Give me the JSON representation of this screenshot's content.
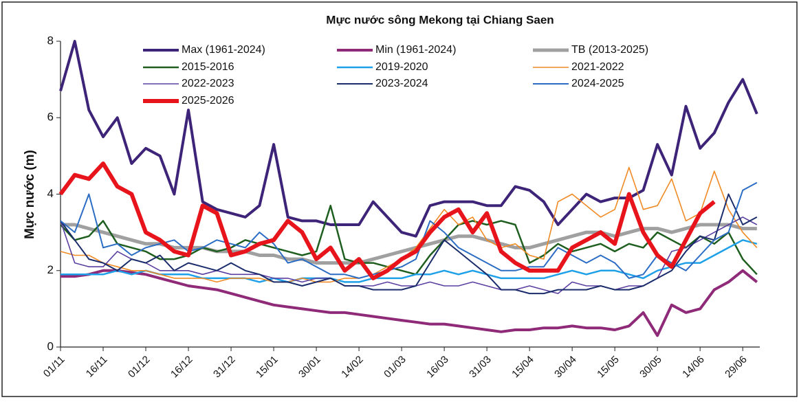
{
  "chart_data": {
    "type": "line",
    "title": "Mực nước sông Mekong tại Chiang Saen",
    "y_label": "Mực nước (m)",
    "categories": [
      "01/11",
      null,
      null,
      "16/11",
      null,
      null,
      "01/12",
      null,
      null,
      "16/12",
      null,
      null,
      "31/12",
      null,
      null,
      "15/01",
      null,
      null,
      "30/01",
      null,
      null,
      "14/02",
      null,
      null,
      "01/03",
      null,
      null,
      "16/03",
      null,
      null,
      "31/03",
      null,
      null,
      "15/04",
      null,
      null,
      "30/04",
      null,
      null,
      "15/05",
      null,
      null,
      "30/05",
      null,
      null,
      "14/06",
      null,
      null,
      "29/06",
      null
    ],
    "ylim": [
      0,
      8
    ],
    "yticks": [
      0,
      2,
      4,
      6,
      8
    ],
    "grid": false,
    "series": [
      {
        "name": "Max (1961-2024)",
        "color": "#3d2478",
        "values": [
          6.7,
          8.0,
          6.2,
          5.5,
          6.0,
          4.8,
          5.2,
          5.0,
          4.0,
          6.2,
          3.8,
          3.6,
          3.5,
          3.4,
          3.7,
          5.3,
          3.4,
          3.3,
          3.3,
          3.2,
          3.2,
          3.2,
          3.8,
          3.4,
          3.0,
          2.9,
          3.7,
          3.8,
          3.8,
          3.8,
          3.7,
          3.7,
          4.2,
          4.1,
          3.8,
          3.2,
          3.6,
          4.0,
          3.8,
          3.9,
          3.9,
          4.1,
          5.3,
          4.5,
          6.3,
          5.2,
          5.6,
          6.4,
          7.0,
          6.1
        ]
      },
      {
        "name": "Min (1961-2024)",
        "color": "#8e2a78",
        "values": [
          1.85,
          1.85,
          1.9,
          2.0,
          2.0,
          1.95,
          1.9,
          1.8,
          1.7,
          1.6,
          1.55,
          1.5,
          1.4,
          1.3,
          1.2,
          1.1,
          1.05,
          1.0,
          0.95,
          0.9,
          0.9,
          0.85,
          0.8,
          0.75,
          0.7,
          0.65,
          0.6,
          0.6,
          0.55,
          0.5,
          0.45,
          0.4,
          0.45,
          0.45,
          0.5,
          0.5,
          0.55,
          0.5,
          0.5,
          0.45,
          0.55,
          0.9,
          0.3,
          1.1,
          0.9,
          1.0,
          1.5,
          1.7,
          2.0,
          1.7
        ]
      },
      {
        "name": "TB (2013-2025)",
        "color": "#a0a0a0",
        "values": [
          3.2,
          3.2,
          3.1,
          3.0,
          2.9,
          2.8,
          2.7,
          2.7,
          2.6,
          2.6,
          2.6,
          2.5,
          2.5,
          2.5,
          2.4,
          2.4,
          2.3,
          2.3,
          2.2,
          2.2,
          2.2,
          2.2,
          2.3,
          2.4,
          2.5,
          2.6,
          2.7,
          2.8,
          2.9,
          2.9,
          2.8,
          2.7,
          2.6,
          2.6,
          2.7,
          2.8,
          2.9,
          3.0,
          3.0,
          2.9,
          3.0,
          3.1,
          3.1,
          3.0,
          3.1,
          3.2,
          3.2,
          3.2,
          3.1,
          3.1
        ]
      },
      {
        "name": "2015-2016",
        "color": "#1e5e1e",
        "values": [
          3.2,
          2.8,
          2.9,
          3.3,
          2.7,
          2.6,
          2.5,
          2.3,
          2.3,
          2.4,
          2.6,
          2.5,
          2.6,
          2.8,
          2.7,
          2.6,
          2.5,
          2.4,
          2.5,
          3.7,
          2.3,
          2.2,
          2.2,
          2.1,
          2.0,
          1.9,
          2.4,
          2.8,
          3.2,
          3.3,
          3.2,
          3.3,
          3.2,
          2.2,
          2.4,
          2.7,
          2.5,
          2.6,
          2.7,
          2.5,
          2.7,
          2.6,
          3.0,
          2.8,
          2.6,
          2.9,
          2.7,
          3.0,
          2.3,
          1.9
        ]
      },
      {
        "name": "2019-2020",
        "color": "#1ea0e8",
        "values": [
          1.9,
          1.9,
          1.9,
          1.9,
          2.0,
          1.9,
          2.0,
          1.9,
          1.9,
          1.9,
          1.8,
          1.8,
          1.8,
          1.8,
          1.7,
          1.8,
          1.7,
          1.8,
          1.8,
          1.8,
          1.7,
          1.7,
          1.8,
          1.8,
          1.8,
          1.9,
          1.9,
          2.0,
          1.9,
          2.0,
          1.9,
          1.8,
          1.8,
          1.8,
          1.8,
          1.9,
          2.0,
          1.9,
          2.0,
          2.0,
          1.9,
          1.8,
          2.0,
          2.1,
          2.2,
          2.2,
          2.4,
          2.6,
          2.8,
          2.7
        ]
      },
      {
        "name": "2021-2022",
        "color": "#f08a24",
        "values": [
          2.5,
          2.4,
          2.4,
          2.2,
          2.1,
          2.0,
          2.0,
          1.9,
          1.8,
          1.8,
          1.8,
          1.7,
          1.8,
          1.8,
          1.8,
          1.7,
          1.7,
          1.8,
          1.7,
          1.7,
          1.8,
          1.8,
          1.9,
          2.1,
          2.3,
          2.6,
          3.1,
          3.6,
          3.2,
          3.4,
          2.8,
          2.6,
          2.7,
          2.4,
          2.3,
          3.8,
          4.0,
          3.7,
          3.4,
          3.6,
          4.7,
          3.6,
          3.7,
          4.4,
          3.3,
          3.5,
          4.6,
          3.6,
          3.0,
          2.6
        ]
      },
      {
        "name": "2022-2023",
        "color": "#5b3fa0",
        "values": [
          3.3,
          2.2,
          2.1,
          2.1,
          2.5,
          2.3,
          2.2,
          2.0,
          2.0,
          2.0,
          1.9,
          2.0,
          1.9,
          1.9,
          1.9,
          1.8,
          1.8,
          1.7,
          1.8,
          1.8,
          1.6,
          1.6,
          1.6,
          1.7,
          1.6,
          1.6,
          1.7,
          1.6,
          1.6,
          1.7,
          1.6,
          1.5,
          1.5,
          1.6,
          1.5,
          1.4,
          1.7,
          1.6,
          1.6,
          1.5,
          1.6,
          1.6,
          1.8,
          2.5,
          2.6,
          2.8,
          3.0,
          3.2,
          3.4,
          3.2
        ]
      },
      {
        "name": "2023-2024",
        "color": "#1a2c6b",
        "values": [
          3.3,
          2.8,
          2.3,
          2.2,
          2.0,
          2.3,
          2.2,
          2.4,
          2.0,
          2.2,
          2.1,
          2.0,
          2.2,
          2.0,
          1.9,
          1.7,
          1.7,
          1.6,
          1.7,
          1.8,
          1.6,
          1.6,
          1.5,
          1.5,
          1.5,
          1.6,
          2.2,
          2.8,
          2.5,
          2.2,
          1.9,
          1.5,
          1.5,
          1.4,
          1.4,
          1.5,
          1.5,
          1.5,
          1.6,
          1.5,
          1.5,
          1.6,
          1.8,
          2.0,
          2.5,
          2.9,
          2.8,
          4.0,
          3.2,
          3.4
        ]
      },
      {
        "name": "2024-2025",
        "color": "#2b6cc4",
        "values": [
          3.3,
          3.0,
          4.0,
          2.6,
          2.7,
          2.4,
          2.6,
          2.7,
          2.8,
          2.5,
          2.6,
          2.8,
          2.7,
          2.6,
          3.0,
          2.7,
          2.2,
          2.3,
          2.1,
          1.9,
          1.9,
          1.8,
          1.9,
          2.0,
          2.1,
          2.3,
          3.3,
          3.0,
          2.6,
          2.4,
          2.2,
          2.0,
          2.0,
          2.1,
          2.1,
          2.6,
          2.4,
          2.2,
          2.4,
          2.2,
          1.8,
          1.9,
          2.4,
          2.2,
          2.0,
          2.4,
          2.8,
          3.0,
          4.1,
          4.3
        ]
      },
      {
        "name": "2025-2026",
        "color": "#e8141c",
        "values": [
          4.0,
          4.5,
          4.4,
          4.8,
          4.2,
          4.0,
          3.0,
          2.8,
          2.5,
          2.4,
          3.7,
          3.5,
          2.4,
          2.5,
          2.7,
          2.8,
          3.3,
          3.0,
          2.3,
          2.6,
          2.0,
          2.3,
          1.8,
          2.0,
          2.3,
          2.5,
          3.0,
          3.4,
          3.6,
          3.0,
          3.5,
          2.5,
          2.2,
          2.0,
          2.0,
          2.0,
          2.6,
          2.8,
          3.0,
          2.7,
          4.0,
          3.0,
          2.4,
          2.1,
          2.8,
          3.5,
          3.8,
          null,
          null,
          null
        ]
      }
    ]
  }
}
